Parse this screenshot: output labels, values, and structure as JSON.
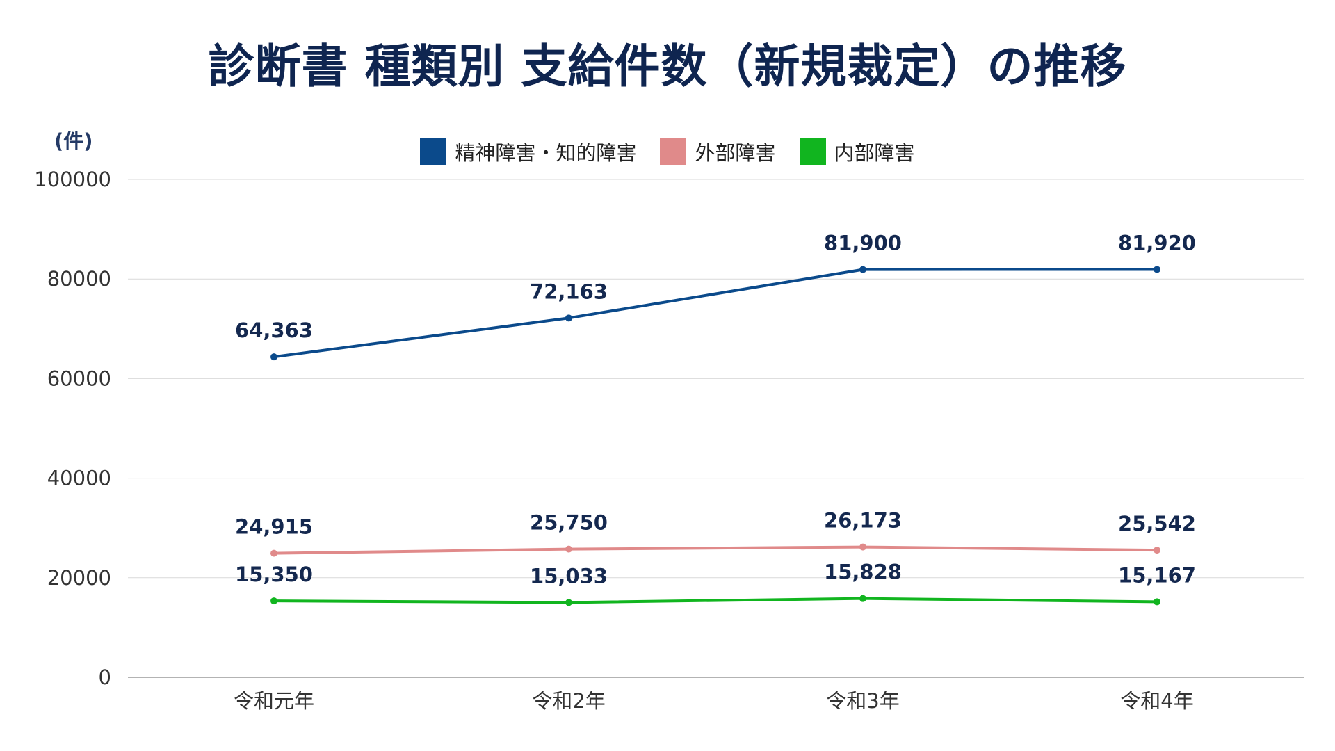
{
  "title": "診断書 種類別 支給件数（新規裁定）の推移",
  "chart_data": {
    "type": "line",
    "title": "診断書 種類別 支給件数（新規裁定）の推移",
    "y_unit": "(件)",
    "categories": [
      "令和元年",
      "令和2年",
      "令和3年",
      "令和4年"
    ],
    "y_ticks": [
      "0",
      "20000",
      "40000",
      "60000",
      "80000",
      "100000"
    ],
    "ylim": [
      0,
      100000
    ],
    "grid": true,
    "legend_position": "top-center",
    "series": [
      {
        "name": "精神障害・知的障害",
        "color": "#0b4a8b",
        "values": [
          64363,
          72163,
          81900,
          81920
        ],
        "labels": [
          "64,363",
          "72,163",
          "81,900",
          "81,920"
        ]
      },
      {
        "name": "外部障害",
        "color": "#e08a8a",
        "values": [
          24915,
          25750,
          26173,
          25542
        ],
        "labels": [
          "24,915",
          "25,750",
          "26,173",
          "25,542"
        ]
      },
      {
        "name": "内部障害",
        "color": "#11b51f",
        "values": [
          15350,
          15033,
          15828,
          15167
        ],
        "labels": [
          "15,350",
          "15,033",
          "15,828",
          "15,167"
        ]
      }
    ]
  }
}
